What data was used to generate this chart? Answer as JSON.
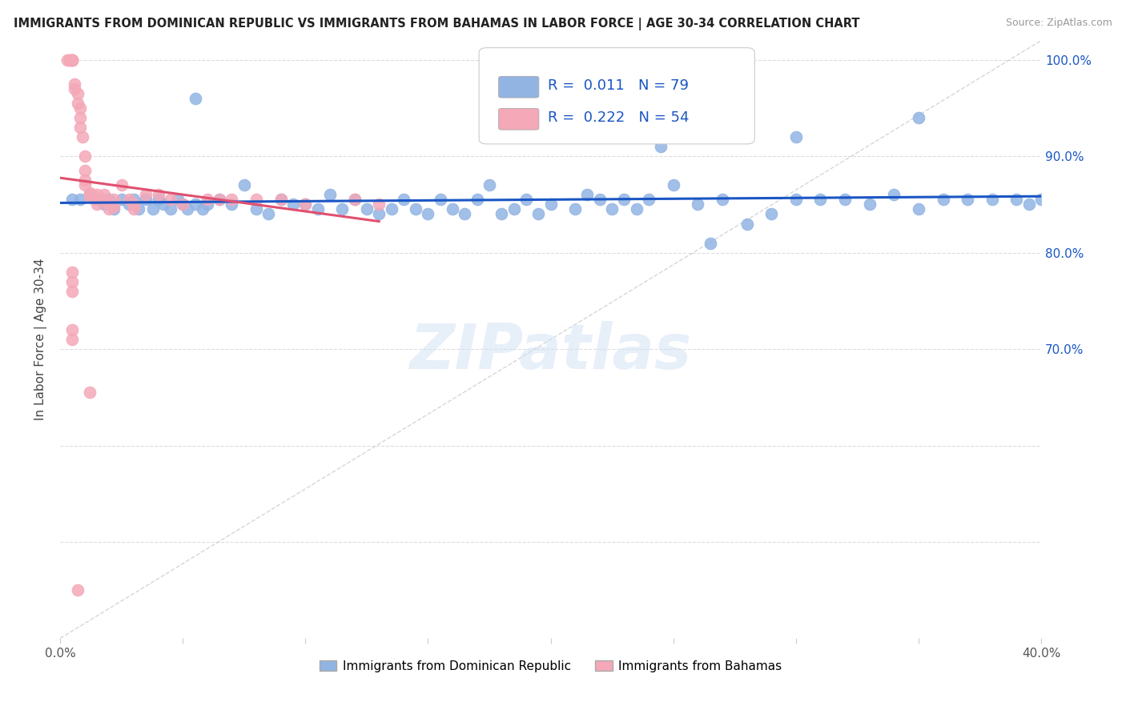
{
  "title": "IMMIGRANTS FROM DOMINICAN REPUBLIC VS IMMIGRANTS FROM BAHAMAS IN LABOR FORCE | AGE 30-34 CORRELATION CHART",
  "source": "Source: ZipAtlas.com",
  "ylabel": "In Labor Force | Age 30-34",
  "xlim": [
    0.0,
    0.4
  ],
  "ylim": [
    0.4,
    1.02
  ],
  "xtick_positions": [
    0.0,
    0.05,
    0.1,
    0.15,
    0.2,
    0.25,
    0.3,
    0.35,
    0.4
  ],
  "xtick_labels": [
    "0.0%",
    "",
    "",
    "",
    "",
    "",
    "",
    "",
    "40.0%"
  ],
  "ytick_positions": [
    0.4,
    0.5,
    0.6,
    0.7,
    0.8,
    0.9,
    1.0
  ],
  "ytick_labels_right": [
    "",
    "",
    "",
    "70.0%",
    "80.0%",
    "90.0%",
    "100.0%"
  ],
  "blue_color": "#92b4e3",
  "pink_color": "#f4a8b8",
  "blue_line_color": "#1a56c4",
  "pink_line_color": "#e05070",
  "diag_color": "#cccccc",
  "grid_color": "#dddddd",
  "legend_blue_R": "0.011",
  "legend_blue_N": "79",
  "legend_pink_R": "0.222",
  "legend_pink_N": "54",
  "legend_label_blue": "Immigrants from Dominican Republic",
  "legend_label_pink": "Immigrants from Bahamas",
  "watermark": "ZIPatlas",
  "blue_x": [
    0.005,
    0.008,
    0.012,
    0.015,
    0.018,
    0.02,
    0.022,
    0.025,
    0.028,
    0.03,
    0.032,
    0.035,
    0.038,
    0.04,
    0.042,
    0.045,
    0.048,
    0.05,
    0.052,
    0.055,
    0.058,
    0.06,
    0.065,
    0.07,
    0.075,
    0.08,
    0.085,
    0.09,
    0.095,
    0.1,
    0.105,
    0.11,
    0.115,
    0.12,
    0.125,
    0.13,
    0.135,
    0.14,
    0.145,
    0.15,
    0.155,
    0.16,
    0.165,
    0.17,
    0.18,
    0.185,
    0.19,
    0.195,
    0.2,
    0.21,
    0.215,
    0.22,
    0.225,
    0.23,
    0.235,
    0.24,
    0.25,
    0.26,
    0.27,
    0.28,
    0.29,
    0.3,
    0.31,
    0.32,
    0.33,
    0.34,
    0.35,
    0.36,
    0.37,
    0.38,
    0.39,
    0.395,
    0.245,
    0.175,
    0.3,
    0.35,
    0.4,
    0.265,
    0.055
  ],
  "blue_y": [
    0.855,
    0.855,
    0.86,
    0.855,
    0.85,
    0.855,
    0.845,
    0.855,
    0.85,
    0.855,
    0.845,
    0.855,
    0.845,
    0.855,
    0.85,
    0.845,
    0.855,
    0.85,
    0.845,
    0.85,
    0.845,
    0.85,
    0.855,
    0.85,
    0.87,
    0.845,
    0.84,
    0.855,
    0.85,
    0.85,
    0.845,
    0.86,
    0.845,
    0.855,
    0.845,
    0.84,
    0.845,
    0.855,
    0.845,
    0.84,
    0.855,
    0.845,
    0.84,
    0.855,
    0.84,
    0.845,
    0.855,
    0.84,
    0.85,
    0.845,
    0.86,
    0.855,
    0.845,
    0.855,
    0.845,
    0.855,
    0.87,
    0.85,
    0.855,
    0.83,
    0.84,
    0.855,
    0.855,
    0.855,
    0.85,
    0.86,
    0.845,
    0.855,
    0.855,
    0.855,
    0.855,
    0.85,
    0.91,
    0.87,
    0.92,
    0.94,
    0.855,
    0.81,
    0.96
  ],
  "pink_x": [
    0.003,
    0.004,
    0.004,
    0.005,
    0.005,
    0.005,
    0.005,
    0.006,
    0.006,
    0.007,
    0.007,
    0.008,
    0.008,
    0.008,
    0.009,
    0.01,
    0.01,
    0.01,
    0.01,
    0.012,
    0.012,
    0.013,
    0.015,
    0.015,
    0.015,
    0.018,
    0.018,
    0.02,
    0.02,
    0.022,
    0.022,
    0.025,
    0.028,
    0.03,
    0.03,
    0.035,
    0.04,
    0.045,
    0.05,
    0.06,
    0.065,
    0.07,
    0.08,
    0.09,
    0.1,
    0.12,
    0.13,
    0.005,
    0.005,
    0.005,
    0.005,
    0.005,
    0.007,
    0.012
  ],
  "pink_y": [
    1.0,
    1.0,
    1.0,
    1.0,
    1.0,
    1.0,
    1.0,
    0.975,
    0.97,
    0.965,
    0.955,
    0.95,
    0.94,
    0.93,
    0.92,
    0.9,
    0.885,
    0.875,
    0.87,
    0.862,
    0.858,
    0.86,
    0.86,
    0.855,
    0.85,
    0.86,
    0.855,
    0.85,
    0.845,
    0.855,
    0.848,
    0.87,
    0.855,
    0.85,
    0.845,
    0.86,
    0.86,
    0.855,
    0.85,
    0.855,
    0.855,
    0.855,
    0.855,
    0.855,
    0.85,
    0.855,
    0.85,
    0.78,
    0.77,
    0.76,
    0.72,
    0.71,
    0.45,
    0.655
  ]
}
